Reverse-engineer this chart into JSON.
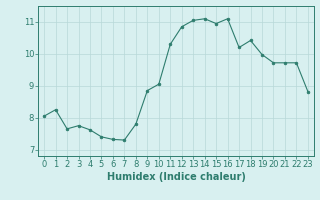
{
  "x": [
    0,
    1,
    2,
    3,
    4,
    5,
    6,
    7,
    8,
    9,
    10,
    11,
    12,
    13,
    14,
    15,
    16,
    17,
    18,
    19,
    20,
    21,
    22,
    23
  ],
  "y": [
    8.05,
    8.25,
    7.65,
    7.75,
    7.62,
    7.4,
    7.32,
    7.3,
    7.8,
    8.85,
    9.05,
    10.3,
    10.85,
    11.05,
    11.1,
    10.95,
    11.1,
    10.2,
    10.42,
    9.98,
    9.72,
    9.72,
    9.72,
    8.82
  ],
  "line_color": "#2e7d6e",
  "marker": "o",
  "marker_size": 2,
  "bg_color": "#d8f0f0",
  "grid_color": "#b8d8d8",
  "xlabel": "Humidex (Indice chaleur)",
  "xlim": [
    -0.5,
    23.5
  ],
  "ylim": [
    6.8,
    11.5
  ],
  "yticks": [
    7,
    8,
    9,
    10,
    11
  ],
  "xticks": [
    0,
    1,
    2,
    3,
    4,
    5,
    6,
    7,
    8,
    9,
    10,
    11,
    12,
    13,
    14,
    15,
    16,
    17,
    18,
    19,
    20,
    21,
    22,
    23
  ],
  "xlabel_fontsize": 7,
  "tick_fontsize": 6,
  "tick_color": "#2e7d6e",
  "label_color": "#2e7d6e",
  "spine_color": "#2e7d6e"
}
